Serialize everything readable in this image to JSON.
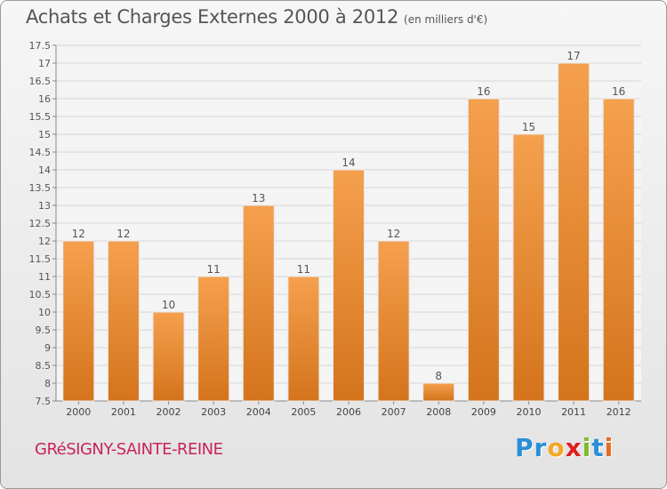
{
  "title": "Achats et Charges Externes 2000 à 2012",
  "subtitle": "(en milliers d'€)",
  "commune": "GRéSIGNY-SAINTE-REINE",
  "logo": {
    "letters": [
      "P",
      "r",
      "o",
      "x",
      "i",
      "t",
      "i"
    ],
    "colors": [
      "#2a8fd6",
      "#2a8fd6",
      "#f5a623",
      "#e02020",
      "#7dbb2d",
      "#2a8fd6",
      "#e86a1a"
    ]
  },
  "chart_data": {
    "type": "bar",
    "title": "Achats et Charges Externes 2000 à 2012",
    "subtitle": "(en milliers d'€)",
    "categories": [
      "2000",
      "2001",
      "2002",
      "2003",
      "2004",
      "2005",
      "2006",
      "2007",
      "2008",
      "2009",
      "2010",
      "2011",
      "2012"
    ],
    "values": [
      12,
      12,
      10,
      11,
      13,
      11,
      14,
      12,
      8,
      16,
      15,
      17,
      16
    ],
    "ylim": [
      7.5,
      17.5
    ],
    "yticks": [
      "7.5",
      "8",
      "8.5",
      "9",
      "9.5",
      "10",
      "10.5",
      "11",
      "11.5",
      "12",
      "12.5",
      "13",
      "13.5",
      "14",
      "14.5",
      "15",
      "15.5",
      "16",
      "16.5",
      "17",
      "17.5"
    ],
    "grid": true,
    "bar_color": "#f5a04e",
    "bar_color_dark": "#d4741c"
  }
}
